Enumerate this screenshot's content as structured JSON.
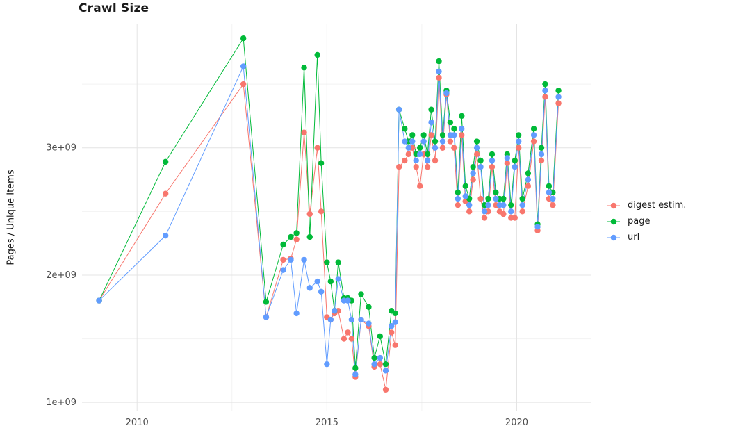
{
  "title": "Crawl Size",
  "chart_data": {
    "type": "line",
    "title": "Crawl Size",
    "xlabel": "",
    "ylabel": "Pages / Unique Items",
    "unit": "pages (value 1.0 = 1e+09)",
    "grid": true,
    "legend_position": "right",
    "xlim": [
      2008.55,
      2021.95
    ],
    "ylim": [
      0.93,
      3.97
    ],
    "x_ticks": [
      {
        "value": 2010,
        "label": "2010"
      },
      {
        "value": 2015,
        "label": "2015"
      },
      {
        "value": 2020,
        "label": "2020"
      }
    ],
    "y_ticks": [
      {
        "value": 1,
        "label": "1e+09"
      },
      {
        "value": 2,
        "label": "2e+09"
      },
      {
        "value": 3,
        "label": "3e+09"
      }
    ],
    "x_minor": [
      2012.5,
      2017.5
    ],
    "y_minor": [
      1.5,
      2.5,
      3.5
    ],
    "panel_background": "#ffffff",
    "grid_major_color": "#e4e4e4",
    "grid_minor_color": "#f2f2f2",
    "x": [
      2009.0,
      2010.75,
      2012.8,
      2013.4,
      2013.85,
      2014.05,
      2014.2,
      2014.4,
      2014.55,
      2014.75,
      2014.85,
      2015.0,
      2015.1,
      2015.2,
      2015.3,
      2015.45,
      2015.55,
      2015.65,
      2015.75,
      2015.9,
      2016.1,
      2016.25,
      2016.4,
      2016.55,
      2016.7,
      2016.8,
      2016.9,
      2017.05,
      2017.15,
      2017.25,
      2017.35,
      2017.45,
      2017.55,
      2017.65,
      2017.75,
      2017.85,
      2017.95,
      2018.05,
      2018.15,
      2018.25,
      2018.35,
      2018.45,
      2018.55,
      2018.65,
      2018.75,
      2018.85,
      2018.95,
      2019.05,
      2019.15,
      2019.25,
      2019.35,
      2019.45,
      2019.55,
      2019.65,
      2019.75,
      2019.85,
      2019.95,
      2020.05,
      2020.15,
      2020.3,
      2020.45,
      2020.55,
      2020.65,
      2020.75,
      2020.85,
      2020.95,
      2021.1
    ],
    "series": [
      {
        "name": "digest estim.",
        "color": "#F8766D",
        "values": [
          1.8,
          2.64,
          3.5,
          1.67,
          2.12,
          2.13,
          2.28,
          3.12,
          2.48,
          3.0,
          2.5,
          1.67,
          1.65,
          1.7,
          1.72,
          1.5,
          1.55,
          1.5,
          1.2,
          1.65,
          1.6,
          1.28,
          1.3,
          1.1,
          1.55,
          1.45,
          2.85,
          2.9,
          2.95,
          3.0,
          2.85,
          2.7,
          2.95,
          2.85,
          3.1,
          2.9,
          3.55,
          3.0,
          3.42,
          3.05,
          3.0,
          2.55,
          3.1,
          2.58,
          2.5,
          2.75,
          2.95,
          2.6,
          2.45,
          2.5,
          2.85,
          2.55,
          2.5,
          2.48,
          2.88,
          2.45,
          2.45,
          3.0,
          2.5,
          2.7,
          3.05,
          2.35,
          2.9,
          3.4,
          2.6,
          2.55,
          3.35
        ]
      },
      {
        "name": "page",
        "color": "#00BA38",
        "values": [
          1.8,
          2.89,
          3.86,
          1.79,
          2.24,
          2.3,
          2.33,
          3.63,
          2.3,
          3.73,
          2.88,
          2.1,
          1.95,
          1.72,
          2.1,
          1.82,
          1.82,
          1.8,
          1.27,
          1.85,
          1.75,
          1.35,
          1.52,
          1.3,
          1.72,
          1.7,
          3.3,
          3.15,
          3.05,
          3.1,
          2.95,
          3.0,
          3.1,
          2.95,
          3.3,
          3.05,
          3.68,
          3.1,
          3.45,
          3.2,
          3.15,
          2.65,
          3.25,
          2.7,
          2.6,
          2.85,
          3.05,
          2.9,
          2.55,
          2.6,
          2.95,
          2.65,
          2.6,
          2.6,
          2.95,
          2.55,
          2.9,
          3.1,
          2.6,
          2.8,
          3.15,
          2.4,
          3.0,
          3.5,
          2.7,
          2.65,
          3.45
        ]
      },
      {
        "name": "url",
        "color": "#619CFF",
        "values": [
          1.8,
          2.31,
          3.64,
          1.67,
          2.04,
          2.12,
          1.7,
          2.12,
          1.9,
          1.95,
          1.87,
          1.3,
          1.65,
          1.72,
          1.97,
          1.8,
          1.8,
          1.65,
          1.22,
          1.65,
          1.62,
          1.3,
          1.35,
          1.25,
          1.6,
          1.63,
          3.3,
          3.05,
          3.0,
          3.05,
          2.9,
          2.95,
          3.05,
          2.9,
          3.2,
          3.0,
          3.6,
          3.05,
          3.43,
          3.1,
          3.1,
          2.6,
          3.15,
          2.62,
          2.55,
          2.8,
          3.0,
          2.85,
          2.5,
          2.55,
          2.9,
          2.6,
          2.55,
          2.55,
          2.92,
          2.5,
          2.85,
          3.05,
          2.55,
          2.75,
          3.1,
          2.38,
          2.95,
          3.45,
          2.65,
          2.6,
          3.4
        ]
      }
    ]
  }
}
